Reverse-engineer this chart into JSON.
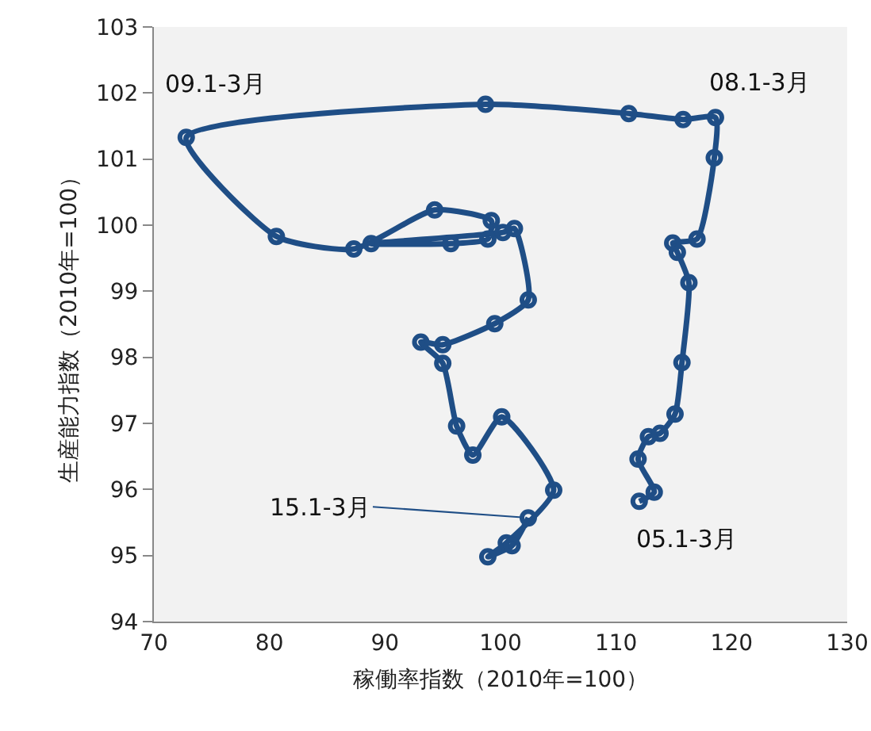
{
  "chart_data": {
    "type": "line",
    "xlabel": "稼働率指数（2010年=100）",
    "ylabel": "生産能力指数（2010年=100）",
    "xlim": [
      70,
      130
    ],
    "xticks": [
      70,
      80,
      90,
      100,
      110,
      120,
      130
    ],
    "ylim": [
      94,
      103
    ],
    "yticks": [
      94,
      95,
      96,
      97,
      98,
      99,
      100,
      101,
      102,
      103
    ],
    "grid": false,
    "marker": "circle",
    "line_style": "solid",
    "series": [
      {
        "color": "#1f4e86",
        "x": [
          112.0,
          113.3,
          111.9,
          112.8,
          113.8,
          115.1,
          115.7,
          116.3,
          115.3,
          114.9,
          117.0,
          118.5,
          118.6,
          115.8,
          111.1,
          98.7,
          72.8,
          80.6,
          87.3,
          94.3,
          99.2,
          98.9,
          95.7,
          88.8,
          100.2,
          101.2,
          102.4,
          99.5,
          95.0,
          93.1,
          95.0,
          96.2,
          97.6,
          100.1,
          104.6,
          100.5,
          98.9,
          101.0,
          102.4
        ],
        "values": [
          95.82,
          95.96,
          96.46,
          96.8,
          96.85,
          97.14,
          97.92,
          99.13,
          99.59,
          99.73,
          99.79,
          101.02,
          101.63,
          101.6,
          101.69,
          101.83,
          101.33,
          99.83,
          99.64,
          100.23,
          100.07,
          99.79,
          99.72,
          99.72,
          99.89,
          99.95,
          98.87,
          98.51,
          98.19,
          98.23,
          97.91,
          96.96,
          96.52,
          97.1,
          95.99,
          95.19,
          94.98,
          95.15,
          95.57
        ]
      }
    ],
    "annotations": [
      {
        "text": "05.1-3月",
        "x": 112.0,
        "y": 95.82
      },
      {
        "text": "08.1-3月",
        "x": 118.6,
        "y": 101.63
      },
      {
        "text": "09.1-3月",
        "x": 72.8,
        "y": 101.33
      },
      {
        "text": "15.1-3月",
        "x": 102.4,
        "y": 95.57
      }
    ]
  }
}
